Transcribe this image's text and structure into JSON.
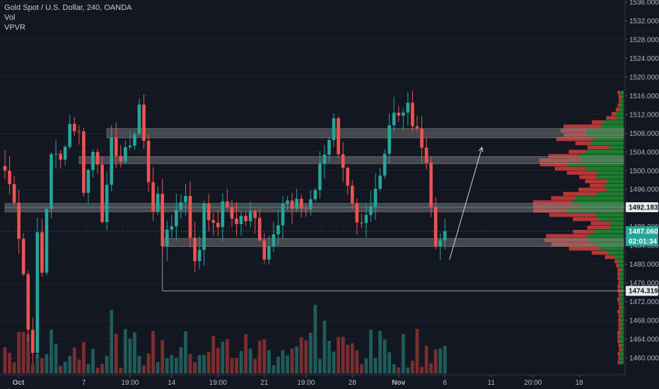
{
  "legend": {
    "symbol": "Gold Spot / U.S. Dollar, 240, OANDA",
    "volume": "Vol",
    "profile": "VPVR"
  },
  "colors": {
    "background": "#131722",
    "up": "#26a69a",
    "down": "#ef5350",
    "profile_up": "#1e8f2f",
    "profile_down": "#d43d3a",
    "zone": "#8a8a8a",
    "support_line": "#b2b5be",
    "price_line": "#26a69a"
  },
  "price_tags": {
    "level_high": "1492.183",
    "current": "1487.060",
    "countdown": "02:01:34",
    "level_low": "1474.319"
  },
  "chart_data": {
    "type": "candlestick",
    "symbol": "Gold Spot / U.S. Dollar",
    "interval": "240",
    "source": "OANDA",
    "ylim": [
      1458,
      1537
    ],
    "y_ticks": [
      1460,
      1464,
      1468,
      1472,
      1476,
      1480,
      1484,
      1488,
      1492,
      1496,
      1500,
      1504,
      1508,
      1512,
      1516,
      1520,
      1524,
      1528,
      1532,
      1536
    ],
    "x_ticks": [
      {
        "label": "Oct",
        "x": 0
      },
      {
        "label": "7",
        "x": 17
      },
      {
        "label": "19:00",
        "x": 27
      },
      {
        "label": "14",
        "x": 36
      },
      {
        "label": "19:00",
        "x": 46
      },
      {
        "label": "21",
        "x": 56
      },
      {
        "label": "19:00",
        "x": 65
      },
      {
        "label": "28",
        "x": 75
      },
      {
        "label": "Nov",
        "x": 85
      },
      {
        "label": "6",
        "x": 95
      },
      {
        "label": "11",
        "x": 105
      },
      {
        "label": "20:00",
        "x": 114
      },
      {
        "label": "18",
        "x": 124
      }
    ],
    "anchors": [
      [
        0,
        1500
      ],
      [
        2,
        1494
      ],
      [
        4,
        1478
      ],
      [
        5,
        1466
      ],
      [
        6,
        1462
      ],
      [
        7,
        1486
      ],
      [
        8,
        1478
      ],
      [
        9,
        1492
      ],
      [
        10,
        1504
      ],
      [
        12,
        1502
      ],
      [
        14,
        1510
      ],
      [
        16,
        1508
      ],
      [
        17,
        1496
      ],
      [
        18,
        1500
      ],
      [
        19,
        1504
      ],
      [
        20,
        1502
      ],
      [
        21,
        1490
      ],
      [
        22,
        1496
      ],
      [
        23,
        1506
      ],
      [
        25,
        1502
      ],
      [
        27,
        1506
      ],
      [
        28,
        1508
      ],
      [
        29,
        1514
      ],
      [
        30,
        1506
      ],
      [
        31,
        1498
      ],
      [
        32,
        1492
      ],
      [
        33,
        1494
      ],
      [
        34,
        1484
      ],
      [
        35,
        1488
      ],
      [
        36,
        1488
      ],
      [
        37,
        1492
      ],
      [
        38,
        1494
      ],
      [
        39,
        1494
      ],
      [
        40,
        1486
      ],
      [
        41,
        1481
      ],
      [
        42,
        1484
      ],
      [
        43,
        1492
      ],
      [
        44,
        1490
      ],
      [
        45,
        1488
      ],
      [
        46,
        1488
      ],
      [
        47,
        1494
      ],
      [
        48,
        1492
      ],
      [
        49,
        1490
      ],
      [
        50,
        1488
      ],
      [
        51,
        1490
      ],
      [
        52,
        1490
      ],
      [
        53,
        1492
      ],
      [
        54,
        1490
      ],
      [
        55,
        1486
      ],
      [
        56,
        1482
      ],
      [
        57,
        1484
      ],
      [
        58,
        1486
      ],
      [
        59,
        1488
      ],
      [
        60,
        1492
      ],
      [
        61,
        1494
      ],
      [
        62,
        1492
      ],
      [
        63,
        1494
      ],
      [
        64,
        1492
      ],
      [
        65,
        1491
      ],
      [
        66,
        1494
      ],
      [
        67,
        1496
      ],
      [
        68,
        1502
      ],
      [
        69,
        1504
      ],
      [
        70,
        1506
      ],
      [
        71,
        1512
      ],
      [
        72,
        1504
      ],
      [
        73,
        1500
      ],
      [
        74,
        1496
      ],
      [
        75,
        1492
      ],
      [
        76,
        1488
      ],
      [
        77,
        1488
      ],
      [
        78,
        1490
      ],
      [
        79,
        1492
      ],
      [
        80,
        1496
      ],
      [
        81,
        1500
      ],
      [
        82,
        1504
      ],
      [
        83,
        1510
      ],
      [
        84,
        1513
      ],
      [
        85,
        1512
      ],
      [
        86,
        1512
      ],
      [
        87,
        1514
      ],
      [
        88,
        1510
      ],
      [
        89,
        1508
      ],
      [
        90,
        1506
      ],
      [
        91,
        1502
      ],
      [
        92,
        1492
      ],
      [
        93,
        1484
      ],
      [
        94,
        1486
      ],
      [
        95,
        1487.06
      ]
    ],
    "last_close": 1487.06,
    "support_zones": [
      {
        "from": 1507.0,
        "to": 1509.0,
        "x_start": 22
      },
      {
        "from": 1501.5,
        "to": 1503.0,
        "x_start": 16
      },
      {
        "from": 1491.2,
        "to": 1493.0,
        "x_start": 0
      },
      {
        "from": 1483.8,
        "to": 1485.5,
        "x_start": 34
      }
    ],
    "horizontal_levels": [
      {
        "value": 1492.183,
        "x_start": 0
      },
      {
        "value": 1474.319,
        "x_start": 34
      }
    ],
    "volume_profile": {
      "bins_from": 1459,
      "bins_to": 1517,
      "bin_step": 0.9,
      "poc": 1492.2,
      "peaks": [
        1492.2,
        1485.0,
        1508.0,
        1502.0
      ]
    },
    "projection_arrow": {
      "from": [
        96,
        1481
      ],
      "to": [
        103,
        1505
      ]
    }
  }
}
